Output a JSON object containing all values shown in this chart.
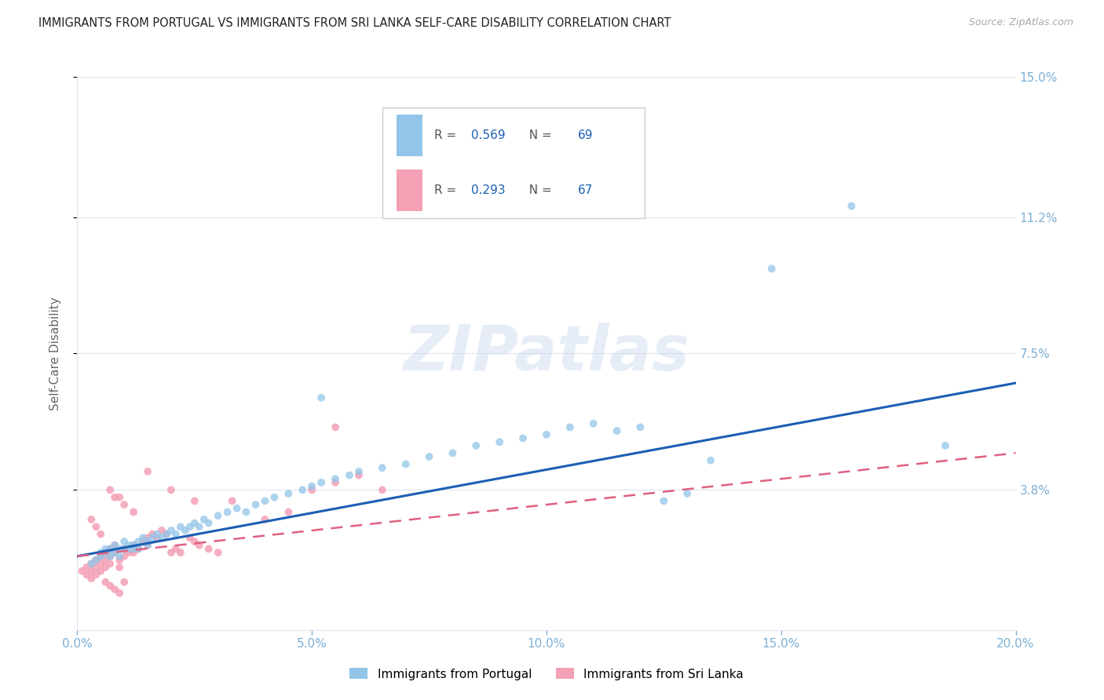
{
  "title": "IMMIGRANTS FROM PORTUGAL VS IMMIGRANTS FROM SRI LANKA SELF-CARE DISABILITY CORRELATION CHART",
  "source": "Source: ZipAtlas.com",
  "ylabel": "Self-Care Disability",
  "xlim": [
    0.0,
    0.2
  ],
  "ylim": [
    0.0,
    0.15
  ],
  "xticks": [
    0.0,
    0.05,
    0.1,
    0.15,
    0.2
  ],
  "xtick_labels": [
    "0.0%",
    "5.0%",
    "10.0%",
    "15.0%",
    "20.0%"
  ],
  "yticks": [
    0.038,
    0.075,
    0.112,
    0.15
  ],
  "ytick_labels": [
    "3.8%",
    "7.5%",
    "11.2%",
    "15.0%"
  ],
  "portugal_color": "#92c5e8",
  "srilanka_color": "#f4a0b5",
  "portugal_line_color": "#1a5fb4",
  "srilanka_line_color": "#e06080",
  "R_portugal": "0.569",
  "N_portugal": "69",
  "R_srilanka": "0.293",
  "N_srilanka": "67",
  "watermark": "ZIPatlas",
  "background_color": "#ffffff",
  "grid_color": "#dde4f0",
  "portugal_scatter": [
    [
      0.003,
      0.018
    ],
    [
      0.004,
      0.019
    ],
    [
      0.005,
      0.021
    ],
    [
      0.005,
      0.02
    ],
    [
      0.006,
      0.022
    ],
    [
      0.006,
      0.021
    ],
    [
      0.007,
      0.022
    ],
    [
      0.007,
      0.02
    ],
    [
      0.008,
      0.023
    ],
    [
      0.008,
      0.021
    ],
    [
      0.009,
      0.022
    ],
    [
      0.009,
      0.02
    ],
    [
      0.01,
      0.024
    ],
    [
      0.01,
      0.022
    ],
    [
      0.011,
      0.022
    ],
    [
      0.011,
      0.023
    ],
    [
      0.012,
      0.023
    ],
    [
      0.012,
      0.022
    ],
    [
      0.013,
      0.024
    ],
    [
      0.013,
      0.022
    ],
    [
      0.014,
      0.025
    ],
    [
      0.015,
      0.024
    ],
    [
      0.015,
      0.023
    ],
    [
      0.016,
      0.025
    ],
    [
      0.017,
      0.026
    ],
    [
      0.018,
      0.025
    ],
    [
      0.019,
      0.026
    ],
    [
      0.02,
      0.027
    ],
    [
      0.021,
      0.026
    ],
    [
      0.022,
      0.028
    ],
    [
      0.023,
      0.027
    ],
    [
      0.024,
      0.028
    ],
    [
      0.025,
      0.029
    ],
    [
      0.026,
      0.028
    ],
    [
      0.027,
      0.03
    ],
    [
      0.028,
      0.029
    ],
    [
      0.03,
      0.031
    ],
    [
      0.032,
      0.032
    ],
    [
      0.034,
      0.033
    ],
    [
      0.036,
      0.032
    ],
    [
      0.038,
      0.034
    ],
    [
      0.04,
      0.035
    ],
    [
      0.042,
      0.036
    ],
    [
      0.045,
      0.037
    ],
    [
      0.048,
      0.038
    ],
    [
      0.05,
      0.039
    ],
    [
      0.052,
      0.04
    ],
    [
      0.055,
      0.041
    ],
    [
      0.058,
      0.042
    ],
    [
      0.06,
      0.043
    ],
    [
      0.065,
      0.044
    ],
    [
      0.07,
      0.045
    ],
    [
      0.075,
      0.047
    ],
    [
      0.08,
      0.048
    ],
    [
      0.085,
      0.05
    ],
    [
      0.09,
      0.051
    ],
    [
      0.095,
      0.052
    ],
    [
      0.1,
      0.053
    ],
    [
      0.105,
      0.055
    ],
    [
      0.11,
      0.056
    ],
    [
      0.115,
      0.054
    ],
    [
      0.12,
      0.055
    ],
    [
      0.125,
      0.035
    ],
    [
      0.13,
      0.037
    ],
    [
      0.135,
      0.046
    ],
    [
      0.052,
      0.063
    ],
    [
      0.148,
      0.098
    ],
    [
      0.165,
      0.115
    ],
    [
      0.185,
      0.05
    ]
  ],
  "srilanka_scatter": [
    [
      0.001,
      0.016
    ],
    [
      0.002,
      0.017
    ],
    [
      0.002,
      0.015
    ],
    [
      0.003,
      0.018
    ],
    [
      0.003,
      0.016
    ],
    [
      0.003,
      0.014
    ],
    [
      0.004,
      0.019
    ],
    [
      0.004,
      0.017
    ],
    [
      0.004,
      0.015
    ],
    [
      0.005,
      0.02
    ],
    [
      0.005,
      0.018
    ],
    [
      0.005,
      0.016
    ],
    [
      0.006,
      0.021
    ],
    [
      0.006,
      0.019
    ],
    [
      0.006,
      0.017
    ],
    [
      0.007,
      0.022
    ],
    [
      0.007,
      0.02
    ],
    [
      0.007,
      0.018
    ],
    [
      0.008,
      0.023
    ],
    [
      0.008,
      0.021
    ],
    [
      0.008,
      0.036
    ],
    [
      0.009,
      0.019
    ],
    [
      0.009,
      0.017
    ],
    [
      0.01,
      0.022
    ],
    [
      0.01,
      0.02
    ],
    [
      0.011,
      0.021
    ],
    [
      0.012,
      0.023
    ],
    [
      0.012,
      0.021
    ],
    [
      0.013,
      0.022
    ],
    [
      0.014,
      0.024
    ],
    [
      0.015,
      0.025
    ],
    [
      0.015,
      0.023
    ],
    [
      0.016,
      0.026
    ],
    [
      0.017,
      0.025
    ],
    [
      0.018,
      0.027
    ],
    [
      0.019,
      0.026
    ],
    [
      0.02,
      0.021
    ],
    [
      0.021,
      0.022
    ],
    [
      0.022,
      0.021
    ],
    [
      0.024,
      0.025
    ],
    [
      0.025,
      0.024
    ],
    [
      0.026,
      0.023
    ],
    [
      0.028,
      0.022
    ],
    [
      0.03,
      0.021
    ],
    [
      0.033,
      0.035
    ],
    [
      0.003,
      0.03
    ],
    [
      0.004,
      0.028
    ],
    [
      0.005,
      0.026
    ],
    [
      0.007,
      0.038
    ],
    [
      0.009,
      0.036
    ],
    [
      0.01,
      0.034
    ],
    [
      0.012,
      0.032
    ],
    [
      0.006,
      0.013
    ],
    [
      0.007,
      0.012
    ],
    [
      0.008,
      0.011
    ],
    [
      0.009,
      0.01
    ],
    [
      0.01,
      0.013
    ],
    [
      0.015,
      0.043
    ],
    [
      0.02,
      0.038
    ],
    [
      0.025,
      0.035
    ],
    [
      0.04,
      0.03
    ],
    [
      0.045,
      0.032
    ],
    [
      0.05,
      0.038
    ],
    [
      0.055,
      0.04
    ],
    [
      0.06,
      0.042
    ],
    [
      0.055,
      0.055
    ],
    [
      0.065,
      0.038
    ]
  ],
  "portugal_line": [
    [
      0.0,
      0.02
    ],
    [
      0.2,
      0.067
    ]
  ],
  "srilanka_line": [
    [
      0.0,
      0.02
    ],
    [
      0.2,
      0.048
    ]
  ]
}
